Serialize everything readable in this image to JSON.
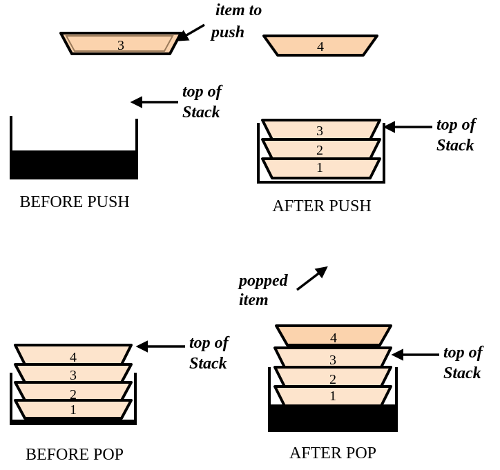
{
  "top_item_label": "item to",
  "top_item_label_line2": "push",
  "top_of_stack_line1": "top of",
  "top_of_stack_line2": "Stack",
  "popped_line1": "popped",
  "popped_line2": "item",
  "captions": {
    "before_push": "BEFORE PUSH",
    "after_push": "AFTER PUSH",
    "before_pop": "BEFORE POP",
    "after_pop": "AFTER POP"
  },
  "plates": {
    "item_to_push": "3",
    "loose_plate": "4",
    "after_push": [
      "3",
      "2",
      "1"
    ],
    "before_pop": [
      "4",
      "3",
      "2",
      "1"
    ],
    "after_pop": [
      "4",
      "3",
      "2",
      "1"
    ]
  },
  "colors": {
    "plate_fill": "#fde4cc",
    "plate_fill_dark": "#fbd3ad",
    "outline": "#000000"
  }
}
